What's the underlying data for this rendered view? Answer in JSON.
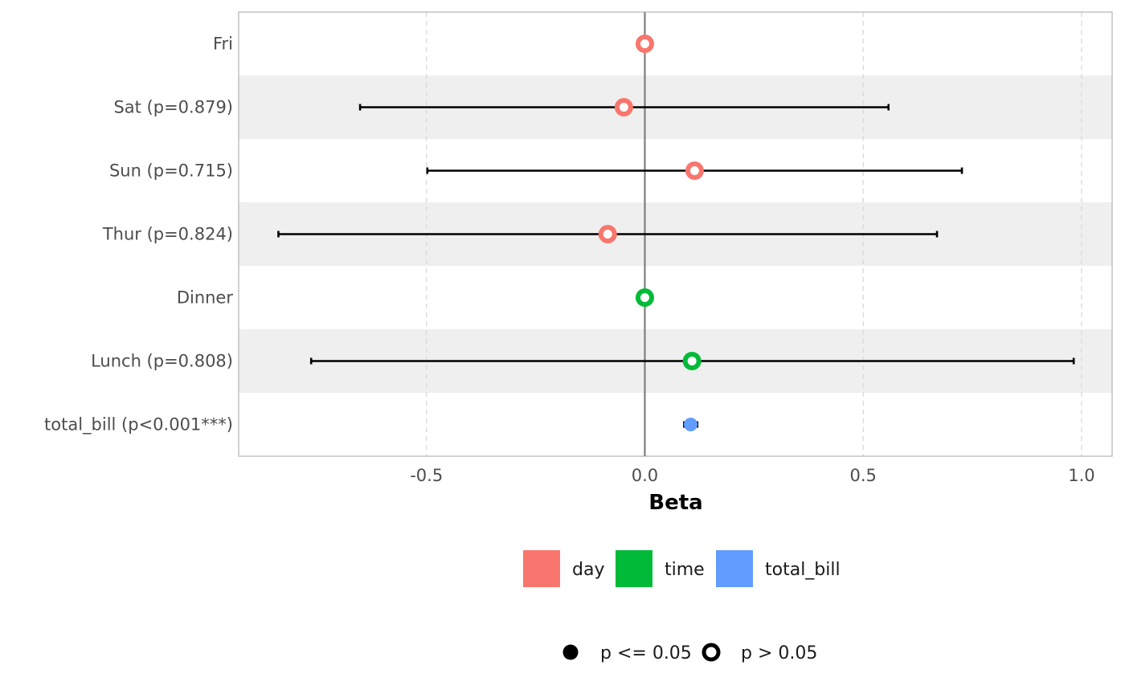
{
  "chart_data": {
    "type": "scatter",
    "subtype": "forest-plot",
    "xlabel": "Beta",
    "xlim": [
      -0.93,
      1.07
    ],
    "x_ticks": [
      -0.5,
      0.0,
      0.5,
      1.0
    ],
    "x_tick_labels": [
      "-0.5",
      "0.0",
      "0.5",
      "1.0"
    ],
    "grid": "vertical dashed major gridlines",
    "reference_line": 0,
    "rows": [
      {
        "label": "Fri",
        "group": "day",
        "estimate": 0.0,
        "ci": null,
        "significant": false
      },
      {
        "label": "Sat (p=0.879)",
        "group": "day",
        "estimate": -0.048,
        "ci": [
          -0.652,
          0.558
        ],
        "significant": false
      },
      {
        "label": "Sun (p=0.715)",
        "group": "day",
        "estimate": 0.114,
        "ci": [
          -0.498,
          0.726
        ],
        "significant": false
      },
      {
        "label": "Thur (p=0.824)",
        "group": "day",
        "estimate": -0.085,
        "ci": [
          -0.839,
          0.669
        ],
        "significant": false
      },
      {
        "label": "Dinner",
        "group": "time",
        "estimate": 0.0,
        "ci": null,
        "significant": false
      },
      {
        "label": "Lunch (p=0.808)",
        "group": "time",
        "estimate": 0.108,
        "ci": [
          -0.764,
          0.982
        ],
        "significant": false
      },
      {
        "label": "total_bill (p<0.001***)",
        "group": "total_bill",
        "estimate": 0.105,
        "ci": [
          0.09,
          0.12
        ],
        "significant": true
      }
    ],
    "legend": {
      "placement": "bottom",
      "groups": [
        {
          "name": "day",
          "color": "#F8766D"
        },
        {
          "name": "time",
          "color": "#00BA38"
        },
        {
          "name": "total_bill",
          "color": "#619CFF"
        }
      ],
      "shapes": [
        {
          "name": "p <= 0.05",
          "style": "filled"
        },
        {
          "name": "p > 0.05",
          "style": "hollow"
        }
      ]
    }
  }
}
